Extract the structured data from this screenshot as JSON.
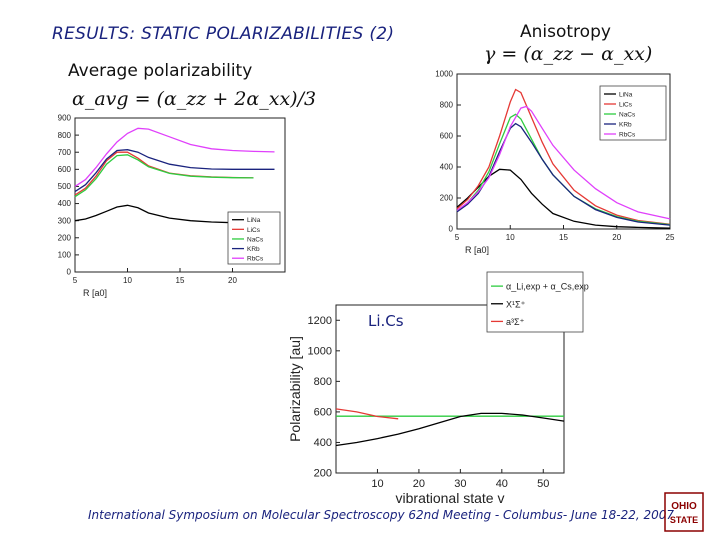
{
  "header": {
    "title": "RESULTS: STATIC POLARIZABILITIES (2)",
    "anisotropy_label": "Anisotropy",
    "anisotropy_formula": "γ = (α_zz − α_xx)",
    "average_label": "Average polarizability",
    "average_formula": "α_avg = (α_zz + 2α_xx)/3"
  },
  "footer": {
    "text": "International Symposium on Molecular Spectroscopy 62nd Meeting - Columbus- June 18-22, 2007"
  },
  "logo": {
    "text": "OHIO STATE"
  },
  "lics_note": "Li.Cs",
  "colors": {
    "LiNa": "#000000",
    "LiCs": "#e53935",
    "NaCs": "#2ecc40",
    "KRb": "#1a237e",
    "RbCs": "#e040fb"
  },
  "chart_data": [
    {
      "type": "line",
      "id": "average",
      "xlabel": "R [a0]",
      "ylabel": "",
      "xlim": [
        5,
        25
      ],
      "ylim": [
        0,
        900
      ],
      "xticks": [
        5,
        10,
        15,
        20
      ],
      "yticks": [
        0,
        100,
        200,
        300,
        400,
        500,
        600,
        700,
        800,
        900
      ],
      "legend": "bottom-right",
      "series": [
        {
          "name": "LiNa",
          "color": "#000000",
          "x": [
            5,
            6,
            7,
            8,
            9,
            10,
            11,
            12,
            14,
            16,
            18,
            20,
            22,
            24
          ],
          "y": [
            300,
            310,
            330,
            355,
            380,
            390,
            375,
            345,
            315,
            300,
            292,
            288,
            285,
            284
          ]
        },
        {
          "name": "LiCs",
          "color": "#e53935",
          "x": [
            5,
            6,
            7,
            8,
            9,
            10,
            11,
            12,
            14,
            16,
            18,
            20,
            22
          ],
          "y": [
            450,
            490,
            560,
            650,
            700,
            700,
            665,
            620,
            578,
            562,
            556,
            552,
            550
          ]
        },
        {
          "name": "NaCs",
          "color": "#2ecc40",
          "x": [
            5,
            6,
            7,
            8,
            9,
            10,
            11,
            12,
            14,
            16,
            18,
            20,
            22
          ],
          "y": [
            440,
            480,
            545,
            630,
            680,
            685,
            655,
            615,
            576,
            560,
            554,
            551,
            550
          ]
        },
        {
          "name": "KRb",
          "color": "#1a237e",
          "x": [
            5,
            6,
            7,
            8,
            9,
            10,
            11,
            12,
            14,
            16,
            18,
            20,
            22,
            24
          ],
          "y": [
            470,
            510,
            580,
            660,
            710,
            715,
            700,
            670,
            630,
            610,
            602,
            600,
            600,
            600
          ]
        },
        {
          "name": "RbCs",
          "color": "#e040fb",
          "x": [
            5,
            6,
            7,
            8,
            9,
            10,
            11,
            12,
            14,
            16,
            18,
            20,
            22,
            24
          ],
          "y": [
            500,
            540,
            610,
            690,
            760,
            810,
            840,
            835,
            790,
            745,
            720,
            710,
            705,
            702
          ]
        }
      ]
    },
    {
      "type": "line",
      "id": "anisotropy",
      "xlabel": "R [a0]",
      "ylabel": "",
      "xlim": [
        5,
        25
      ],
      "ylim": [
        0,
        1000
      ],
      "xticks": [
        5,
        10,
        15,
        20,
        25
      ],
      "yticks": [
        0,
        200,
        400,
        600,
        800,
        1000
      ],
      "legend": "top-right",
      "series": [
        {
          "name": "LiNa",
          "color": "#000000",
          "x": [
            5,
            6,
            7,
            8,
            9,
            10,
            11,
            12,
            13,
            14,
            16,
            18,
            20,
            22,
            25
          ],
          "y": [
            140,
            200,
            270,
            340,
            385,
            380,
            320,
            230,
            160,
            100,
            50,
            25,
            15,
            10,
            5
          ]
        },
        {
          "name": "LiCs",
          "color": "#e53935",
          "x": [
            5,
            6,
            7,
            8,
            9,
            10,
            10.5,
            11,
            12,
            13,
            14,
            16,
            18,
            20,
            22,
            25
          ],
          "y": [
            130,
            190,
            280,
            400,
            600,
            820,
            900,
            880,
            720,
            560,
            420,
            250,
            150,
            90,
            55,
            30
          ]
        },
        {
          "name": "NaCs",
          "color": "#2ecc40",
          "x": [
            5,
            6,
            7,
            8,
            9,
            10,
            10.5,
            11,
            12,
            13,
            14,
            16,
            18,
            20,
            22,
            25
          ],
          "y": [
            115,
            170,
            250,
            370,
            550,
            720,
            740,
            710,
            580,
            450,
            350,
            210,
            130,
            80,
            50,
            28
          ]
        },
        {
          "name": "KRb",
          "color": "#1a237e",
          "x": [
            5,
            6,
            7,
            8,
            9,
            10,
            10.5,
            11,
            12,
            13,
            14,
            16,
            18,
            20,
            22,
            25
          ],
          "y": [
            110,
            160,
            230,
            340,
            500,
            650,
            680,
            660,
            560,
            450,
            350,
            210,
            125,
            75,
            45,
            25
          ]
        },
        {
          "name": "RbCs",
          "color": "#e040fb",
          "x": [
            5,
            6,
            7,
            8,
            9,
            10,
            11,
            11.5,
            12,
            13,
            14,
            16,
            18,
            20,
            22,
            25
          ],
          "y": [
            120,
            170,
            240,
            330,
            480,
            660,
            780,
            790,
            760,
            650,
            540,
            380,
            260,
            170,
            110,
            65
          ]
        }
      ]
    },
    {
      "type": "line",
      "id": "lics",
      "xlabel": "vibrational state v",
      "ylabel": "Polarizability [au]",
      "xlim": [
        0,
        55
      ],
      "ylim": [
        200,
        1300
      ],
      "xticks": [
        10,
        20,
        30,
        40,
        50
      ],
      "yticks": [
        200,
        400,
        600,
        800,
        1000,
        1200
      ],
      "legend": "top-right",
      "series": [
        {
          "name": "α_Li,exp + α_Cs,exp",
          "color": "#2ecc40",
          "x": [
            0,
            55
          ],
          "y": [
            572,
            572
          ]
        },
        {
          "name": "X¹Σ⁺",
          "color": "#000000",
          "x": [
            0,
            5,
            10,
            15,
            20,
            25,
            30,
            35,
            40,
            45,
            50,
            55
          ],
          "y": [
            380,
            400,
            425,
            455,
            490,
            530,
            570,
            590,
            590,
            580,
            560,
            540
          ]
        },
        {
          "name": "a³Σ⁺",
          "color": "#e53935",
          "x": [
            0,
            5,
            10,
            15
          ],
          "y": [
            620,
            600,
            570,
            555
          ]
        }
      ]
    }
  ]
}
